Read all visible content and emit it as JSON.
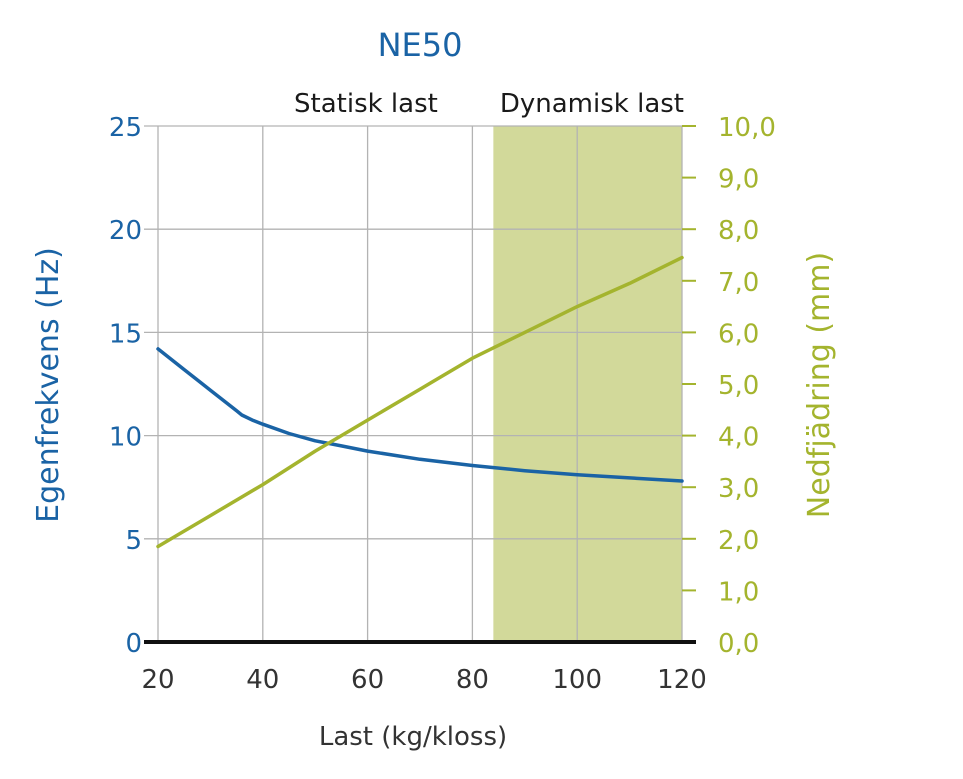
{
  "chart_data": {
    "type": "line",
    "title": "NE50",
    "xlabel": "Last (kg/kloss)",
    "ylabel_left": "Egenfrekvens (Hz)",
    "ylabel_right": "Nedfjädring (mm)",
    "xlim": [
      20,
      120
    ],
    "ylim_left": [
      0,
      25
    ],
    "ylim_right": [
      0,
      10
    ],
    "x_ticks": [
      "20",
      "40",
      "60",
      "80",
      "100",
      "120"
    ],
    "y_left_ticks": [
      "0",
      "5",
      "10",
      "15",
      "20",
      "25"
    ],
    "y_right_ticks": [
      "0,0",
      "1,0",
      "2,0",
      "3,0",
      "4,0",
      "5,0",
      "6,0",
      "7,0",
      "8,0",
      "9,0",
      "10,0"
    ],
    "regions": [
      {
        "label": "Statisk last",
        "x_range": [
          20,
          84
        ],
        "shaded": false
      },
      {
        "label": "Dynamisk last",
        "x_range": [
          84,
          120
        ],
        "shaded": true
      }
    ],
    "grid": true,
    "series": [
      {
        "axis": "left",
        "color": "#1a63a5",
        "x": [
          20,
          25,
          30,
          35,
          36,
          38,
          40,
          45,
          50,
          55,
          60,
          70,
          80,
          90,
          100,
          110,
          120
        ],
        "values": [
          14.2,
          13.2,
          12.2,
          11.2,
          11.0,
          10.75,
          10.55,
          10.1,
          9.75,
          9.5,
          9.25,
          8.85,
          8.55,
          8.3,
          8.1,
          7.95,
          7.8
        ]
      },
      {
        "axis": "right",
        "color": "#a4b42e",
        "x": [
          20,
          30,
          40,
          50,
          60,
          70,
          80,
          90,
          100,
          110,
          120
        ],
        "values": [
          1.85,
          2.45,
          3.05,
          3.7,
          4.3,
          4.9,
          5.5,
          6.0,
          6.5,
          6.95,
          7.45
        ]
      }
    ],
    "colors": {
      "left_axis": "#1a63a5",
      "right_axis": "#a4b42e",
      "shade": "#d2d99a",
      "grid": "#b3b3b3",
      "baseline": "#111111",
      "x_ticks": "#333333"
    }
  }
}
